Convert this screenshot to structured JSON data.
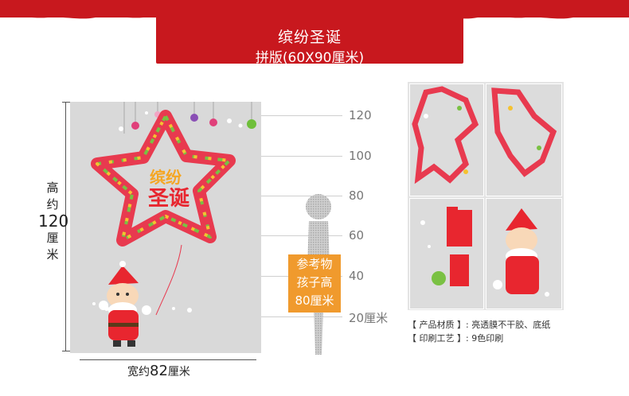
{
  "banner": {
    "title": "缤纷圣诞",
    "subtitle": "拼版(60X90厘米)"
  },
  "dimensions": {
    "height_label_top": "高",
    "height_label_mid": "约",
    "height_value": "120",
    "height_unit": "厘",
    "height_unit2": "米",
    "width_prefix": "宽约",
    "width_value": "82",
    "width_unit": "厘米"
  },
  "scale": {
    "ticks": [
      "120",
      "100",
      "80",
      "60",
      "40",
      "20厘米"
    ]
  },
  "reference": {
    "line1": "参考物",
    "line2": "孩子高",
    "line3": "80厘米"
  },
  "artwork": {
    "sticker_text": "缤纷",
    "sticker_text2": "圣诞"
  },
  "specs": {
    "material_label": "【 产品材质 】:",
    "material_value": "亮透膜不干胶、底纸",
    "print_label": "【 印刷工艺 】:",
    "print_value": "9色印刷"
  },
  "colors": {
    "brand_red": "#c8181e",
    "orange": "#f09a2d",
    "board_gray": "#d9d9d9"
  }
}
